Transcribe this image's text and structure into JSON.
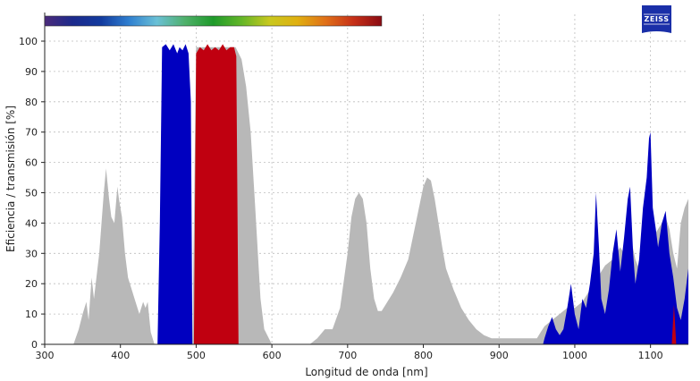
{
  "chart_data": {
    "type": "area",
    "xlabel": "Longitud de onda [nm]",
    "ylabel": "Eficiencia / transmisión [%]",
    "xlim": [
      300,
      1150
    ],
    "ylim": [
      0,
      105
    ],
    "x_ticks": [
      300,
      400,
      500,
      600,
      700,
      800,
      900,
      1000,
      1100
    ],
    "y_ticks": [
      0,
      10,
      20,
      30,
      40,
      50,
      60,
      70,
      80,
      90,
      100
    ],
    "grid": true,
    "logo": "ZEISS",
    "colors": {
      "background_curve": "#b8b8b8",
      "blue_filter": "#0000c0",
      "red_filter": "#c00010",
      "grid": "#bdbdbd",
      "axis": "#222222",
      "logo": "#1a2fa8"
    },
    "series": [
      {
        "color": "#b8b8b8",
        "x": [
          338,
          345,
          350,
          355,
          358,
          362,
          365,
          372,
          378,
          381,
          385,
          388,
          392,
          396,
          398,
          402,
          406,
          410,
          415,
          420,
          425,
          430,
          433,
          436,
          440,
          445,
          449,
          452,
          470,
          495,
          500,
          520,
          545,
          552,
          560,
          566,
          572,
          578,
          585,
          590,
          600,
          650,
          660,
          670,
          680,
          690,
          700,
          705,
          710,
          715,
          720,
          725,
          730,
          735,
          740,
          745,
          750,
          760,
          770,
          780,
          790,
          800,
          805,
          810,
          815,
          820,
          825,
          830,
          840,
          850,
          860,
          870,
          880,
          890,
          900,
          950,
          955,
          960,
          970,
          980,
          990,
          1000,
          1010,
          1020,
          1030,
          1040,
          1050,
          1060,
          1065,
          1070,
          1075,
          1080,
          1085,
          1090,
          1095,
          1100,
          1105,
          1110,
          1115,
          1120,
          1125,
          1130,
          1135,
          1140,
          1145,
          1150
        ],
        "y": [
          0,
          5,
          10,
          14,
          8,
          22,
          15,
          30,
          50,
          58,
          48,
          42,
          40,
          52,
          48,
          42,
          30,
          22,
          18,
          14,
          10,
          14,
          12,
          14,
          4,
          0,
          0,
          0,
          0,
          0,
          98,
          98,
          98,
          98,
          94,
          85,
          70,
          45,
          15,
          5,
          0,
          0,
          2,
          5,
          5,
          12,
          30,
          42,
          48,
          50,
          48,
          40,
          25,
          15,
          11,
          11,
          13,
          17,
          22,
          28,
          40,
          52,
          55,
          54,
          48,
          40,
          32,
          25,
          18,
          12,
          8,
          5,
          3,
          2,
          2,
          2,
          4,
          6,
          8,
          10,
          12,
          12,
          14,
          18,
          22,
          26,
          28,
          32,
          30,
          34,
          34,
          28,
          25,
          26,
          30,
          33,
          36,
          38,
          40,
          42,
          38,
          30,
          25,
          40,
          45,
          48
        ]
      },
      {
        "color": "#0000c0",
        "x": [
          449,
          452,
          455,
          460,
          465,
          470,
          475,
          478,
          482,
          486,
          490,
          493,
          495,
          958,
          960,
          965,
          970,
          975,
          980,
          985,
          990,
          995,
          1000,
          1005,
          1010,
          1015,
          1020,
          1025,
          1028,
          1032,
          1035,
          1040,
          1045,
          1050,
          1055,
          1060,
          1065,
          1070,
          1073,
          1077,
          1080,
          1085,
          1090,
          1095,
          1098,
          1100,
          1103,
          1107,
          1110,
          1115,
          1120,
          1125,
          1130,
          1135,
          1140,
          1145,
          1150
        ],
        "y": [
          0,
          40,
          98,
          99,
          97,
          99,
          96,
          98,
          97,
          99,
          96,
          80,
          0,
          0,
          2,
          6,
          9,
          5,
          3,
          5,
          12,
          20,
          10,
          5,
          15,
          12,
          20,
          30,
          50,
          32,
          15,
          10,
          18,
          30,
          38,
          24,
          35,
          48,
          52,
          30,
          20,
          28,
          45,
          55,
          68,
          70,
          45,
          38,
          32,
          40,
          44,
          30,
          22,
          12,
          8,
          15,
          25
        ]
      },
      {
        "color": "#c00010",
        "x": [
          497,
          500,
          505,
          510,
          515,
          520,
          525,
          530,
          535,
          540,
          545,
          550,
          553,
          556,
          1128,
          1131,
          1134
        ],
        "y": [
          0,
          96,
          98,
          97,
          99,
          97,
          98,
          97,
          99,
          97,
          98,
          98,
          95,
          0,
          0,
          13,
          0
        ]
      }
    ],
    "spectrum_bar": {
      "x_range": [
        300,
        745
      ],
      "stops": [
        "#4b2a7a",
        "#1c2a8c",
        "#123a9e",
        "#2f7fd0",
        "#6ac0d6",
        "#4fb06a",
        "#1e9a2a",
        "#62b628",
        "#c8c81e",
        "#e0b010",
        "#e07018",
        "#c63018",
        "#8a0a12"
      ]
    }
  }
}
